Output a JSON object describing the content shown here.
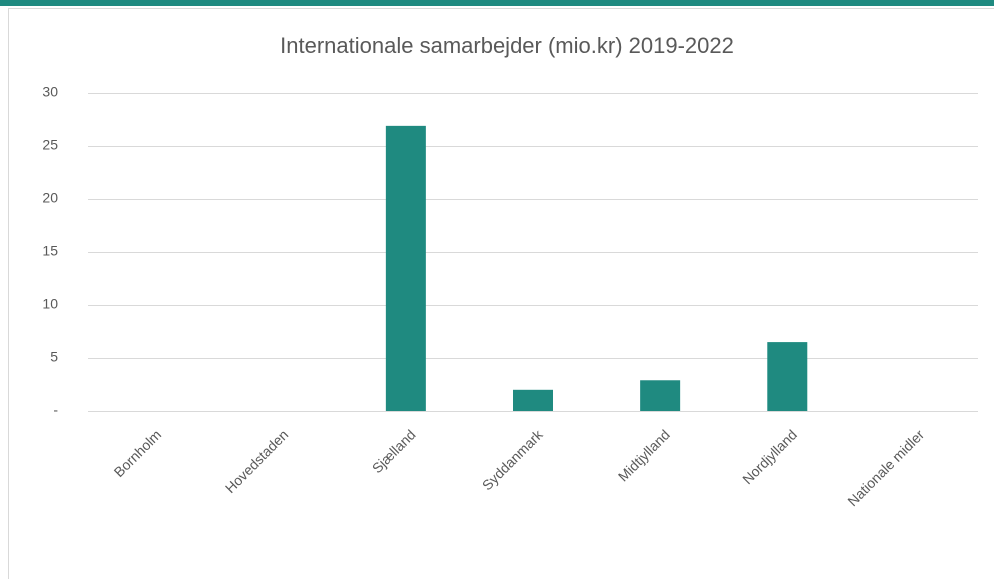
{
  "chart_data": {
    "type": "bar",
    "title": "Internationale samarbejder (mio.kr) 2019-2022",
    "categories": [
      "Bornholm",
      "Hovedstaden",
      "Sjælland",
      "Syddanmark",
      "Midtjylland",
      "Nordjylland",
      "Nationale midler"
    ],
    "values": [
      0,
      0,
      26.9,
      2,
      2.9,
      6.5,
      0
    ],
    "color": "#1f8a80",
    "ylim": [
      0,
      30
    ],
    "yticks": [
      {
        "value": 0,
        "label": "-"
      },
      5,
      10,
      15,
      20,
      25,
      30
    ],
    "grid": true
  }
}
